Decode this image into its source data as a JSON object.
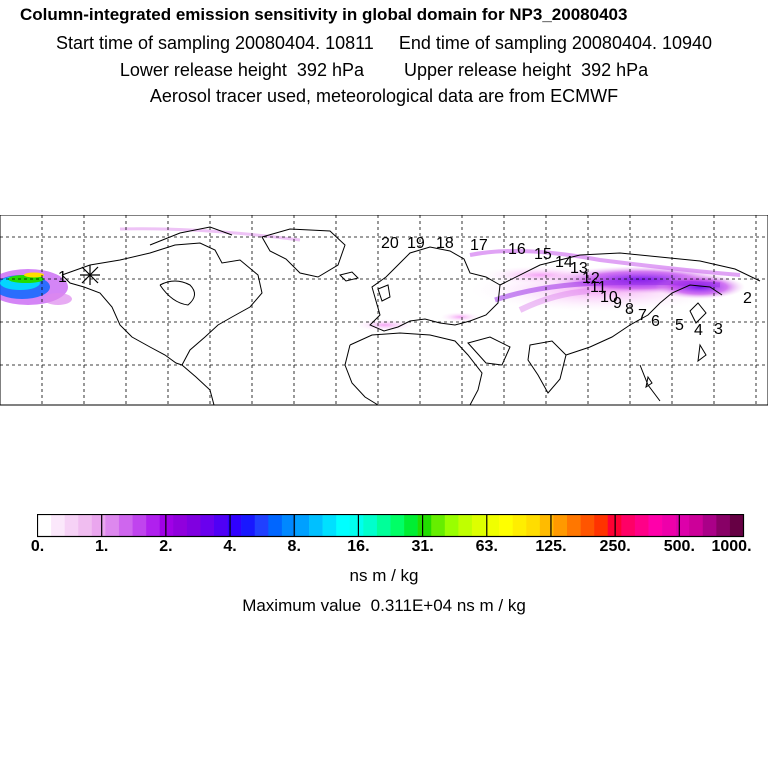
{
  "header": {
    "title": "Column-integrated emission sensitivity in global domain for NP3_20080403",
    "line1": "Start time of sampling 20080404. 10811     End time of sampling 20080404. 10940",
    "line2": "Lower release height  392 hPa        Upper release height  392 hPa",
    "line3": "Aerosol tracer used, meteorological data are from ECMWF"
  },
  "map": {
    "labels": [
      "1",
      "2",
      "3",
      "4",
      "5",
      "6",
      "7",
      "8",
      "9",
      "10",
      "11",
      "12",
      "13",
      "14",
      "15",
      "16",
      "17",
      "18",
      "19",
      "20"
    ]
  },
  "colorbar": {
    "ticks": [
      "0.",
      "1.",
      "2.",
      "4.",
      "8.",
      "16.",
      "31.",
      "63.",
      "125.",
      "250.",
      "500.",
      "1000."
    ],
    "colors": [
      "#ffffff",
      "#fbe8fb",
      "#f6d2f6",
      "#f0bdf0",
      "#eaa6ee",
      "#dd88ee",
      "#cf66ee",
      "#c044ee",
      "#b020ee",
      "#a000e6",
      "#9000dd",
      "#8000e0",
      "#6a00ee",
      "#5000f5",
      "#3000ff",
      "#1818ff",
      "#2040ff",
      "#0066ff",
      "#0088ff",
      "#00a0ff",
      "#00c0ff",
      "#00e0ff",
      "#00ffff",
      "#00ffee",
      "#00ffcc",
      "#00ff99",
      "#00ff66",
      "#00ee33",
      "#22dd00",
      "#66ee00",
      "#99ff00",
      "#c0ff00",
      "#ddff00",
      "#f0ff00",
      "#ffff00",
      "#ffee00",
      "#ffdd00",
      "#ffbb00",
      "#ff9900",
      "#ff7700",
      "#ff5500",
      "#ff3300",
      "#ff0033",
      "#ff0066",
      "#ff0088",
      "#ff00aa",
      "#ee00aa",
      "#dd00aa",
      "#cc0099",
      "#aa0088",
      "#880066",
      "#660044"
    ],
    "unit": "ns m / kg",
    "maximum": "Maximum value  0.311E+04 ns m / kg"
  }
}
